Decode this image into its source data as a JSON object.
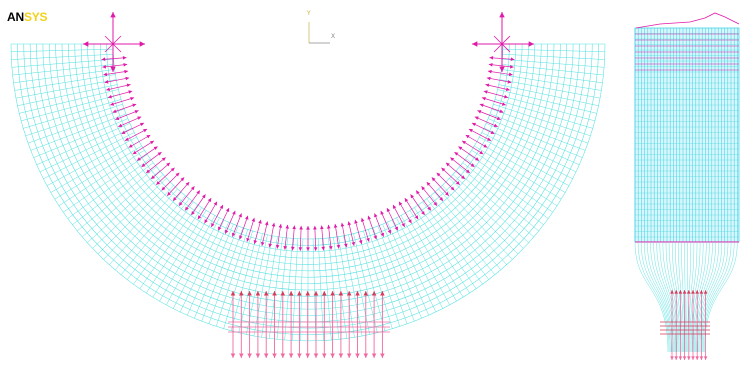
{
  "logo": {
    "part1": "AN",
    "part2": "SYS"
  },
  "triad": {
    "x_label": "X",
    "y_label": "Y"
  },
  "colors": {
    "background": "#ffffff",
    "mesh": "#55e0e0",
    "mesh_dense": "#1fc8e6",
    "load_arrow": "#e01aa8",
    "support_arrow": "#f06aa0",
    "support_arrow_dark": "#d83a5a",
    "logo_black": "#000000",
    "logo_yellow": "#f2d21b"
  },
  "icons": [
    "ansys-logo",
    "coordinate-triad-icon",
    "force-arrow-icon",
    "constraint-icon"
  ]
}
